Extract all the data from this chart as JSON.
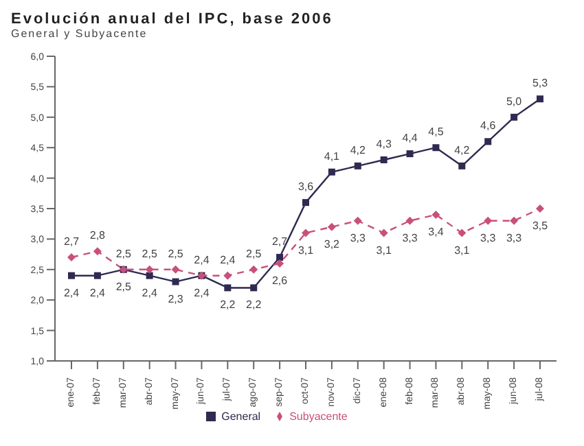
{
  "chart_data": {
    "type": "line",
    "title": "Evolución anual del IPC, base 2006",
    "subtitle": "General y Subyacente",
    "categories": [
      "ene-07",
      "feb-07",
      "mar-07",
      "abr-07",
      "may-07",
      "jun-07",
      "jul-07",
      "ago-07",
      "sep-07",
      "oct-07",
      "nov-07",
      "dic-07",
      "ene-08",
      "feb-08",
      "mar-08",
      "abr-08",
      "may-08",
      "jun-08",
      "jul-08"
    ],
    "series": [
      {
        "name": "General",
        "color": "#2e2a50",
        "marker": "square",
        "line_style": "solid",
        "values": [
          2.4,
          2.4,
          2.5,
          2.4,
          2.3,
          2.4,
          2.2,
          2.2,
          2.7,
          3.6,
          4.1,
          4.2,
          4.3,
          4.4,
          4.5,
          4.2,
          4.6,
          5.0,
          5.3
        ],
        "value_labels": [
          "2,4",
          "2,4",
          "2,5",
          "2,4",
          "2,3",
          "2,4",
          "2,2",
          "2,2",
          "2,7",
          "3,6",
          "4,1",
          "4,2",
          "4,3",
          "4,4",
          "4,5",
          "4,2",
          "4,6",
          "5,0",
          "5,3"
        ]
      },
      {
        "name": "Subyacente",
        "color": "#c8507a",
        "marker": "diamond",
        "line_style": "dashed",
        "values": [
          2.7,
          2.8,
          2.5,
          2.5,
          2.5,
          2.4,
          2.4,
          2.5,
          2.6,
          3.1,
          3.2,
          3.3,
          3.1,
          3.3,
          3.4,
          3.1,
          3.3,
          3.3,
          3.5
        ],
        "value_labels": [
          "2,7",
          "2,8",
          "2,5",
          "2,5",
          "2,5",
          "2,4",
          "2,4",
          "2,5",
          "2,6",
          "3,1",
          "3,2",
          "3,3",
          "3,1",
          "3,3",
          "3,4",
          "3,1",
          "3,3",
          "3,3",
          "3,5"
        ]
      }
    ],
    "ylim": [
      1,
      6
    ],
    "yticks": [
      {
        "value": 1,
        "label": "1,0"
      },
      {
        "value": 1.5,
        "label": "1,5"
      },
      {
        "value": 2,
        "label": "2,0"
      },
      {
        "value": 2.5,
        "label": "2,5"
      },
      {
        "value": 3,
        "label": "3,0"
      },
      {
        "value": 3.5,
        "label": "3,5"
      },
      {
        "value": 4,
        "label": "4,0"
      },
      {
        "value": 4.5,
        "label": "4,5"
      },
      {
        "value": 5,
        "label": "5,0"
      },
      {
        "value": 5.5,
        "label": "5,5"
      },
      {
        "value": 6,
        "label": "6,0"
      }
    ],
    "grid": false,
    "legend": "bottom"
  }
}
